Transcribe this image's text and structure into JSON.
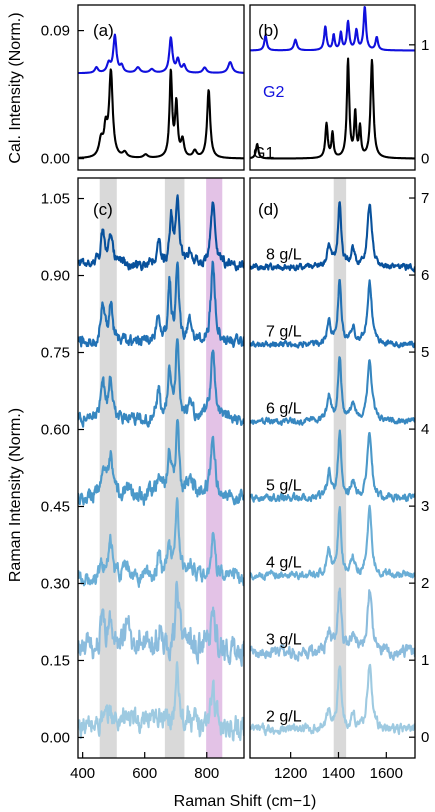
{
  "chart_data": [
    {
      "id": "a",
      "type": "line",
      "panel_label": "(a)",
      "ylabel": "Cal. Intensity (Norm.)",
      "xlim": [
        380,
        920
      ],
      "ylim": [
        -0.008,
        0.108
      ],
      "yticks": [
        0.0,
        0.09
      ],
      "ytick_labels": [
        "0.00",
        "0.09"
      ],
      "series": [
        {
          "name": "G2",
          "color": "#1010dd",
          "offset": 0.06,
          "scale": 0.026,
          "peaks": [
            [
              440,
              0.15,
              6
            ],
            [
              480,
              0.25,
              7
            ],
            [
              500,
              1.0,
              6
            ],
            [
              522,
              0.18,
              6
            ],
            [
              575,
              0.15,
              8
            ],
            [
              620,
              0.1,
              8
            ],
            [
              682,
              0.95,
              6
            ],
            [
              705,
              0.35,
              6
            ],
            [
              725,
              0.2,
              6
            ],
            [
              792,
              0.15,
              7
            ],
            [
              875,
              0.3,
              8
            ]
          ]
        },
        {
          "name": "G1",
          "color": "#000000",
          "offset": 0.0,
          "scale": 0.06,
          "peaks": [
            [
              455,
              0.2,
              8
            ],
            [
              470,
              0.3,
              6
            ],
            [
              487,
              1.0,
              7
            ],
            [
              532,
              0.06,
              8
            ],
            [
              600,
              0.04,
              8
            ],
            [
              682,
              1.0,
              5
            ],
            [
              700,
              0.62,
              5
            ],
            [
              720,
              0.2,
              6
            ],
            [
              760,
              0.08,
              7
            ],
            [
              805,
              0.8,
              6
            ]
          ]
        }
      ]
    },
    {
      "id": "b",
      "type": "line",
      "panel_label": "(b)",
      "xlim": [
        1030,
        1720
      ],
      "ylim": [
        -0.1,
        1.35
      ],
      "yticks": [
        0,
        1
      ],
      "ytick_labels": [
        "0",
        "1"
      ],
      "series": [
        {
          "name": "G2",
          "color": "#1010dd",
          "offset": 0.95,
          "scale": 0.38,
          "peaks": [
            [
              1095,
              0.35,
              6
            ],
            [
              1220,
              0.25,
              7
            ],
            [
              1345,
              0.55,
              6
            ],
            [
              1380,
              0.35,
              5
            ],
            [
              1410,
              0.4,
              5
            ],
            [
              1440,
              0.65,
              6
            ],
            [
              1475,
              0.45,
              6
            ],
            [
              1510,
              1.0,
              6
            ],
            [
              1560,
              0.3,
              6
            ]
          ]
        },
        {
          "name": "G1",
          "color": "#000000",
          "offset": 0.0,
          "scale": 0.86,
          "peaks": [
            [
              1060,
              0.15,
              6
            ],
            [
              1350,
              0.35,
              6
            ],
            [
              1375,
              0.25,
              5
            ],
            [
              1440,
              1.0,
              6
            ],
            [
              1470,
              0.45,
              5
            ],
            [
              1490,
              0.3,
              5
            ],
            [
              1540,
              1.0,
              7
            ]
          ]
        }
      ]
    },
    {
      "id": "c",
      "type": "line",
      "panel_label": "(c)",
      "ylabel": "Raman Intensity (Norm.)",
      "xlabel": "Raman Shift (cm−1)",
      "xlim": [
        385,
        920
      ],
      "ylim": [
        -0.04,
        1.09
      ],
      "xticks": [
        400,
        600,
        800
      ],
      "xtick_labels": [
        "400",
        "600",
        "800"
      ],
      "yticks": [
        0.0,
        0.15,
        0.3,
        0.45,
        0.6,
        0.75,
        0.9,
        1.05
      ],
      "ytick_labels": [
        "0.00",
        "0.15",
        "0.30",
        "0.45",
        "0.60",
        "0.75",
        "0.90",
        "1.05"
      ],
      "bands": [
        [
          455,
          510,
          "#d9d9d9"
        ],
        [
          665,
          728,
          "#d9d9d9"
        ],
        [
          798,
          850,
          "#e3c2e6"
        ]
      ],
      "series": [
        {
          "name": "2 g/L",
          "color": "#9ecae1",
          "offset": 0.02,
          "scale": 0.14,
          "noise": 0.012,
          "peaks": [
            [
              462,
              0.1,
              10
            ],
            [
              490,
              0.2,
              8
            ],
            [
              530,
              0.15,
              12
            ],
            [
              560,
              0.1,
              14
            ],
            [
              650,
              0.25,
              8
            ],
            [
              705,
              0.9,
              7
            ],
            [
              745,
              0.15,
              8
            ],
            [
              820,
              0.6,
              8
            ]
          ]
        },
        {
          "name": "3 g/L",
          "color": "#8bbcdd",
          "offset": 0.17,
          "scale": 0.14,
          "noise": 0.014,
          "peaks": [
            [
              462,
              0.3,
              10
            ],
            [
              490,
              0.35,
              8
            ],
            [
              540,
              0.3,
              14
            ],
            [
              590,
              0.25,
              14
            ],
            [
              650,
              0.2,
              8
            ],
            [
              705,
              0.8,
              7
            ],
            [
              745,
              0.2,
              8
            ],
            [
              820,
              0.6,
              8
            ]
          ]
        },
        {
          "name": "4 g/L",
          "color": "#6aaed6",
          "offset": 0.31,
          "scale": 0.15,
          "noise": 0.008,
          "peaks": [
            [
              462,
              0.2,
              8
            ],
            [
              490,
              0.45,
              7
            ],
            [
              540,
              0.12,
              10
            ],
            [
              645,
              0.35,
              6
            ],
            [
              678,
              0.45,
              6
            ],
            [
              705,
              1.0,
              6
            ],
            [
              748,
              0.2,
              8
            ],
            [
              820,
              0.55,
              8
            ]
          ]
        },
        {
          "name": "5 g/L",
          "color": "#4a98c9",
          "offset": 0.47,
          "scale": 0.15,
          "noise": 0.008,
          "peaks": [
            [
              465,
              0.4,
              8
            ],
            [
              490,
              0.45,
              7
            ],
            [
              540,
              0.1,
              10
            ],
            [
              645,
              0.3,
              7
            ],
            [
              680,
              0.6,
              6
            ],
            [
              705,
              1.0,
              6
            ],
            [
              748,
              0.25,
              8
            ],
            [
              820,
              0.75,
              8
            ]
          ]
        },
        {
          "name": "6 g/L",
          "color": "#3787c0",
          "offset": 0.62,
          "scale": 0.15,
          "noise": 0.006,
          "peaks": [
            [
              465,
              0.45,
              8
            ],
            [
              490,
              0.45,
              7
            ],
            [
              645,
              0.35,
              7
            ],
            [
              680,
              0.6,
              6
            ],
            [
              705,
              1.0,
              6
            ],
            [
              748,
              0.25,
              8
            ],
            [
              820,
              0.9,
              8
            ]
          ]
        },
        {
          "name": "7 g/L",
          "color": "#2171b5",
          "offset": 0.77,
          "scale": 0.15,
          "noise": 0.006,
          "peaks": [
            [
              465,
              0.5,
              8
            ],
            [
              490,
              0.5,
              7
            ],
            [
              645,
              0.35,
              7
            ],
            [
              680,
              0.75,
              6
            ],
            [
              705,
              1.0,
              6
            ],
            [
              748,
              0.25,
              8
            ],
            [
              820,
              1.0,
              8
            ]
          ]
        },
        {
          "name": "8 g/L",
          "color": "#08519c",
          "offset": 0.92,
          "scale": 0.13,
          "noise": 0.005,
          "peaks": [
            [
              465,
              0.5,
              8
            ],
            [
              490,
              0.5,
              7
            ],
            [
              645,
              0.35,
              7
            ],
            [
              685,
              0.7,
              6
            ],
            [
              705,
              1.0,
              6
            ],
            [
              748,
              0.25,
              8
            ],
            [
              820,
              0.95,
              8
            ]
          ]
        }
      ]
    },
    {
      "id": "d",
      "type": "line",
      "panel_label": "(d)",
      "xlim": [
        1030,
        1720
      ],
      "ylim": [
        -0.27,
        7.26
      ],
      "xticks": [
        1200,
        1400,
        1600
      ],
      "xtick_labels": [
        "1200",
        "1400",
        "1600"
      ],
      "yticks": [
        0,
        1,
        2,
        3,
        4,
        5,
        6,
        7
      ],
      "ytick_labels": [
        "0",
        "1",
        "2",
        "3",
        "4",
        "5",
        "6",
        "7"
      ],
      "bands": [
        [
          1380,
          1432,
          "#d9d9d9"
        ]
      ],
      "series": [
        {
          "name": "2 g/L",
          "color": "#9ecae1",
          "offset": 0.1,
          "scale": 0.85,
          "noise": 0.03,
          "peaks": [
            [
              1360,
              0.3,
              10
            ],
            [
              1405,
              0.95,
              9
            ],
            [
              1460,
              0.2,
              10
            ],
            [
              1530,
              1.0,
              11
            ]
          ]
        },
        {
          "name": "3 g/L",
          "color": "#8bbcdd",
          "offset": 1.1,
          "scale": 0.8,
          "noise": 0.04,
          "peaks": [
            [
              1360,
              0.35,
              10
            ],
            [
              1405,
              1.0,
              9
            ],
            [
              1460,
              0.25,
              10
            ],
            [
              1530,
              1.0,
              11
            ]
          ]
        },
        {
          "name": "4 g/L",
          "color": "#6aaed6",
          "offset": 2.1,
          "scale": 0.85,
          "noise": 0.025,
          "peaks": [
            [
              1360,
              0.4,
              9
            ],
            [
              1405,
              1.0,
              8
            ],
            [
              1460,
              0.25,
              10
            ],
            [
              1530,
              1.0,
              11
            ]
          ]
        },
        {
          "name": "5 g/L",
          "color": "#4a98c9",
          "offset": 3.1,
          "scale": 0.85,
          "noise": 0.025,
          "peaks": [
            [
              1360,
              0.4,
              9
            ],
            [
              1405,
              1.0,
              8
            ],
            [
              1460,
              0.25,
              10
            ],
            [
              1530,
              0.95,
              11
            ]
          ]
        },
        {
          "name": "6 g/L",
          "color": "#3787c0",
          "offset": 4.1,
          "scale": 0.85,
          "noise": 0.02,
          "peaks": [
            [
              1360,
              0.4,
              9
            ],
            [
              1405,
              1.0,
              8
            ],
            [
              1460,
              0.25,
              10
            ],
            [
              1530,
              0.95,
              11
            ]
          ]
        },
        {
          "name": "7 g/L",
          "color": "#2171b5",
          "offset": 5.1,
          "scale": 0.85,
          "noise": 0.02,
          "peaks": [
            [
              1360,
              0.35,
              9
            ],
            [
              1405,
              1.0,
              8
            ],
            [
              1460,
              0.25,
              10
            ],
            [
              1530,
              0.95,
              11
            ]
          ]
        },
        {
          "name": "8 g/L",
          "color": "#08519c",
          "offset": 6.1,
          "scale": 0.85,
          "noise": 0.02,
          "peaks": [
            [
              1360,
              0.35,
              9
            ],
            [
              1405,
              1.0,
              8
            ],
            [
              1460,
              0.25,
              10
            ],
            [
              1530,
              0.95,
              11
            ]
          ]
        }
      ]
    }
  ],
  "figure": {
    "shared_xlabel": "Raman Shift (cm−1)"
  }
}
